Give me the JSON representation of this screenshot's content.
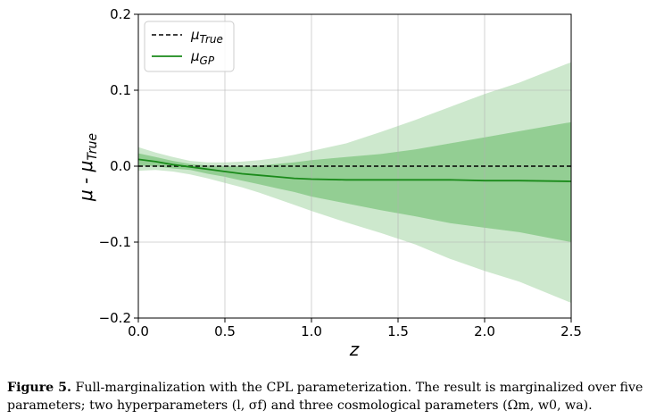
{
  "chart_data": {
    "type": "line",
    "xlabel": "z",
    "ylabel_main": "μ - μ",
    "ylabel_sub": "True",
    "xlim": [
      0.0,
      2.5
    ],
    "ylim": [
      -0.2,
      0.2
    ],
    "x_ticks": [
      0.0,
      0.5,
      1.0,
      1.5,
      2.0,
      2.5
    ],
    "x_tick_labels": [
      "0.0",
      "0.5",
      "1.0",
      "1.5",
      "2.0",
      "2.5"
    ],
    "y_ticks": [
      -0.2,
      -0.1,
      0.0,
      0.1,
      0.2
    ],
    "y_tick_labels": [
      "−0.2",
      "−0.1",
      "0.0",
      "0.1",
      "0.2"
    ],
    "grid": true,
    "legend_placement": "top-left",
    "series": [
      {
        "name_main": "μ",
        "name_sub": "True",
        "style": "dashed",
        "color": "#000000",
        "x": [
          0.0,
          2.5
        ],
        "y": [
          0.0,
          0.0
        ]
      },
      {
        "name_main": "μ",
        "name_sub": "GP",
        "style": "solid",
        "color": "#1a8a1a",
        "x": [
          0.0,
          0.1,
          0.2,
          0.3,
          0.4,
          0.5,
          0.6,
          0.7,
          0.8,
          0.9,
          1.0,
          1.2,
          1.4,
          1.6,
          1.8,
          2.0,
          2.2,
          2.5
        ],
        "y": [
          0.009,
          0.006,
          0.002,
          -0.001,
          -0.004,
          -0.007,
          -0.01,
          -0.012,
          -0.014,
          -0.016,
          -0.017,
          -0.018,
          -0.018,
          -0.018,
          -0.018,
          -0.019,
          -0.019,
          -0.02
        ],
        "band_1sigma_upper": [
          0.017,
          0.012,
          0.007,
          0.003,
          0.001,
          0.0,
          0.0,
          0.001,
          0.003,
          0.005,
          0.008,
          0.012,
          0.016,
          0.022,
          0.03,
          0.038,
          0.046,
          0.058
        ],
        "band_1sigma_lower": [
          0.001,
          0.0,
          -0.003,
          -0.005,
          -0.01,
          -0.014,
          -0.019,
          -0.024,
          -0.029,
          -0.034,
          -0.04,
          -0.049,
          -0.058,
          -0.066,
          -0.075,
          -0.081,
          -0.087,
          -0.1
        ],
        "band_2sigma_upper": [
          0.025,
          0.018,
          0.012,
          0.007,
          0.005,
          0.005,
          0.006,
          0.008,
          0.011,
          0.015,
          0.02,
          0.03,
          0.045,
          0.061,
          0.078,
          0.095,
          0.11,
          0.137
        ],
        "band_2sigma_lower": [
          -0.006,
          -0.005,
          -0.007,
          -0.011,
          -0.016,
          -0.022,
          -0.028,
          -0.035,
          -0.043,
          -0.051,
          -0.059,
          -0.074,
          -0.088,
          -0.103,
          -0.122,
          -0.138,
          -0.152,
          -0.18
        ],
        "band_1sigma_color": "#7fc57f",
        "band_2sigma_color": "#cde8cd"
      }
    ]
  },
  "caption": {
    "label": "Figure 5.",
    "text": "Full-marginalization with the CPL parameterization. The result is marginalized over five parameters; two hyperparameters (l, σf) and three cosmological parameters (Ωm, w0, wa)."
  }
}
